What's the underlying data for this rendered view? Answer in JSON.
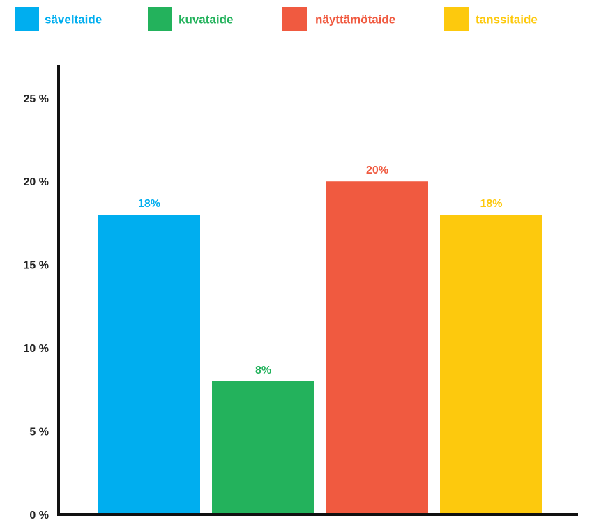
{
  "chart_data": {
    "type": "bar",
    "categories": [
      "säveltaide",
      "kuvataide",
      "näyttämötaide",
      "tanssitaide"
    ],
    "values": [
      18,
      8,
      20,
      18
    ],
    "data_labels": [
      "18%",
      "8%",
      "20%",
      "18%"
    ],
    "colors": [
      "#00aeef",
      "#23b25c",
      "#f05a40",
      "#fdc90d"
    ],
    "ylim": [
      0,
      27
    ],
    "yticks": [
      0,
      5,
      10,
      15,
      20,
      25
    ],
    "ytick_labels": [
      "0 %",
      "5 %",
      "10 %",
      "15 %",
      "20 %",
      "25 %"
    ],
    "title": "",
    "xlabel": "",
    "ylabel": "",
    "legend": {
      "position": "top",
      "entries": [
        "säveltaide",
        "kuvataide",
        "näyttämötaide",
        "tanssitaide"
      ]
    },
    "grid": false,
    "axis_color": "#111111",
    "tick_label_color": "#222222"
  }
}
